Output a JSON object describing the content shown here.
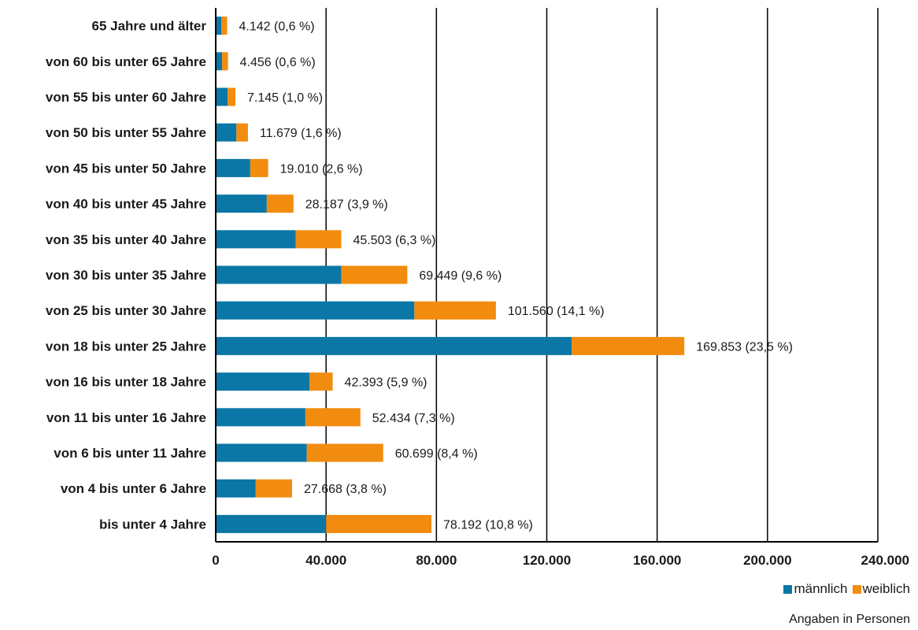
{
  "chart_data": {
    "type": "bar",
    "orientation": "horizontal",
    "stacked": true,
    "categories": [
      "65 Jahre und älter",
      "von 60 bis unter 65 Jahre",
      "von 55 bis unter 60 Jahre",
      "von 50 bis unter 55 Jahre",
      "von 45 bis unter 50 Jahre",
      "von 40 bis unter 45 Jahre",
      "von 35 bis unter 40 Jahre",
      "von 30 bis unter 35 Jahre",
      "von 25 bis unter 30 Jahre",
      "von 18 bis unter 25 Jahre",
      "von 16 bis unter 18 Jahre",
      "von 11 bis unter 16 Jahre",
      "von 6 bis unter 11 Jahre",
      "von 4 bis unter 6 Jahre",
      "bis unter 4 Jahre"
    ],
    "series": [
      {
        "name": "männlich",
        "color": "#0a77a6",
        "values": [
          2000,
          2300,
          4300,
          7500,
          12500,
          18500,
          29000,
          45500,
          72000,
          129000,
          34000,
          32500,
          33000,
          14500,
          40000
        ]
      },
      {
        "name": "weiblich",
        "color": "#f28c0f",
        "values": [
          2142,
          2156,
          2845,
          4179,
          6510,
          9687,
          16503,
          23949,
          29560,
          40853,
          8393,
          19934,
          27699,
          13168,
          38192
        ]
      }
    ],
    "data_labels": [
      "4.142 (0,6 %)",
      "4.456 (0,6 %)",
      "7.145 (1,0 %)",
      "11.679 (1,6 %)",
      "19.010 (2,6 %)",
      "28.187 (3,9 %)",
      "45.503 (6,3 %)",
      "69.449 (9,6 %)",
      "101.560 (14,1 %)",
      "169.853 (23,5 %)",
      "42.393 (5,9 %)",
      "52.434 (7,3 %)",
      "60.699 (8,4 %)",
      "27.668 (3,8 %)",
      "78.192 (10,8 %)"
    ],
    "totals": [
      4142,
      4456,
      7145,
      11679,
      19010,
      28187,
      45503,
      69449,
      101560,
      169853,
      42393,
      52434,
      60699,
      27668,
      78192
    ],
    "xlim": [
      0,
      240000
    ],
    "x_ticks": [
      0,
      40000,
      80000,
      120000,
      160000,
      200000,
      240000
    ],
    "x_tick_labels": [
      "0",
      "40.000",
      "80.000",
      "120.000",
      "160.000",
      "200.000",
      "240.000"
    ],
    "grid": "vertical",
    "legend_position": "bottom-right",
    "note": "Angaben in Personen"
  }
}
